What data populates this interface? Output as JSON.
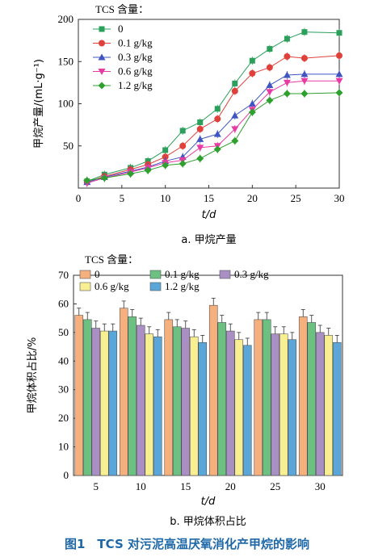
{
  "chart_data": [
    {
      "type": "line",
      "caption": "a. 甲烷产量",
      "xlabel": "t/d",
      "ylabel": "甲烷产量/(mL·g⁻¹)",
      "xlim": [
        0,
        30
      ],
      "ylim": [
        0,
        200
      ],
      "xticks": [
        0,
        5,
        10,
        15,
        20,
        25,
        30
      ],
      "yticks": [
        50,
        100,
        150,
        200
      ],
      "legend_title": "TCS 含量：",
      "legend_position": "top-left",
      "x": [
        1,
        3,
        6,
        8,
        10,
        12,
        14,
        16,
        18,
        20,
        22,
        24,
        26,
        30
      ],
      "series": [
        {
          "name": "0",
          "marker": "square",
          "color": "#2aa05a",
          "values": [
            8,
            16,
            24,
            32,
            45,
            68,
            78,
            94,
            124,
            151,
            165,
            177,
            185,
            184
          ]
        },
        {
          "name": "0.1 g/kg",
          "marker": "circle",
          "color": "#e0403a",
          "values": [
            7,
            14,
            22,
            28,
            37,
            50,
            70,
            82,
            115,
            136,
            143,
            156,
            154,
            157
          ]
        },
        {
          "name": "0.3 g/kg",
          "marker": "triangle-up",
          "color": "#3f55c2",
          "values": [
            7,
            13,
            20,
            25,
            32,
            37,
            58,
            64,
            86,
            100,
            122,
            134,
            135,
            135
          ]
        },
        {
          "name": "0.6 g/kg",
          "marker": "triangle-down",
          "color": "#e83aa3",
          "values": [
            6,
            12,
            19,
            24,
            30,
            33,
            48,
            50,
            70,
            93,
            114,
            125,
            127,
            127
          ]
        },
        {
          "name": "1.2 g/kg",
          "marker": "diamond",
          "color": "#2ea02e",
          "values": [
            9,
            12,
            17,
            21,
            27,
            29,
            35,
            46,
            56,
            90,
            104,
            112,
            112,
            113
          ]
        }
      ]
    },
    {
      "type": "bar",
      "caption": "b. 甲烷体积占比",
      "xlabel": "t/d",
      "ylabel": "甲烷体积占比/%",
      "ylim": [
        0,
        70
      ],
      "yticks": [
        0,
        10,
        20,
        30,
        40,
        50,
        60,
        70
      ],
      "legend_title": "TCS 含量：",
      "legend_position": "top",
      "categories": [
        "5",
        "10",
        "15",
        "20",
        "25",
        "30"
      ],
      "series": [
        {
          "name": "0",
          "color": "#f5b07e",
          "values": [
            56,
            58.5,
            54.5,
            59.5,
            54.5,
            55.5
          ]
        },
        {
          "name": "0.1 g/kg",
          "color": "#6cc182",
          "values": [
            54.5,
            55.5,
            52,
            53.5,
            54.5,
            53.5
          ]
        },
        {
          "name": "0.3 g/kg",
          "color": "#a98fc4",
          "values": [
            51.5,
            52.5,
            51.5,
            50.5,
            49.5,
            50
          ]
        },
        {
          "name": "0.6 g/kg",
          "color": "#f7ef92",
          "values": [
            50.5,
            49.5,
            48.5,
            47.5,
            49.5,
            49
          ]
        },
        {
          "name": "1.2 g/kg",
          "color": "#5aa6d8",
          "values": [
            50.5,
            48.5,
            46.5,
            45.5,
            47.5,
            46.5
          ]
        }
      ]
    }
  ],
  "figure_caption": "图1　TCS 对污泥高温厌氧消化产甲烷的影响"
}
